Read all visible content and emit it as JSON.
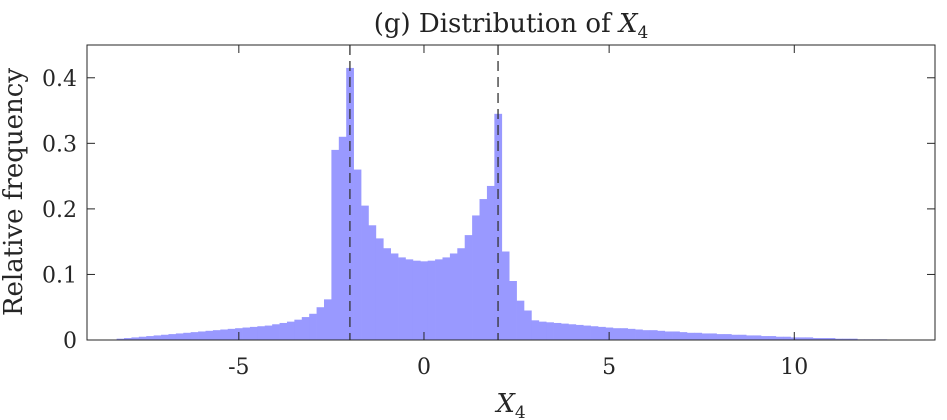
{
  "chart_data": {
    "type": "bar",
    "title_prefix": "(g) Distribution of ",
    "title_var": "X",
    "title_sub": "4",
    "xlabel_var": "X",
    "xlabel_sub": "4",
    "ylabel": "Relative frequency",
    "xlim": [
      -9.1,
      13.8
    ],
    "ylim": [
      0,
      0.45
    ],
    "xticks": [
      -5,
      0,
      5,
      10
    ],
    "xtick_labels": [
      "-5",
      "0",
      "5",
      "10"
    ],
    "yticks": [
      0,
      0.1,
      0.2,
      0.3,
      0.4
    ],
    "ytick_labels": [
      "0",
      "0.1",
      "0.2",
      "0.3",
      "0.4"
    ],
    "grid": false,
    "bar_color": "#9999ff",
    "dashed_lines_x": [
      -2,
      2
    ],
    "bin_width": 0.2,
    "x": [
      -8.2,
      -8.0,
      -7.8,
      -7.6,
      -7.4,
      -7.2,
      -7.0,
      -6.8,
      -6.6,
      -6.4,
      -6.2,
      -6.0,
      -5.8,
      -5.6,
      -5.4,
      -5.2,
      -5.0,
      -4.8,
      -4.6,
      -4.4,
      -4.2,
      -4.0,
      -3.8,
      -3.6,
      -3.4,
      -3.2,
      -3.0,
      -2.8,
      -2.6,
      -2.4,
      -2.2,
      -2.0,
      -1.8,
      -1.6,
      -1.4,
      -1.2,
      -1.0,
      -0.8,
      -0.6,
      -0.4,
      -0.2,
      0.0,
      0.2,
      0.4,
      0.6,
      0.8,
      1.0,
      1.2,
      1.4,
      1.6,
      1.8,
      2.0,
      2.2,
      2.4,
      2.6,
      2.8,
      3.0,
      3.2,
      3.4,
      3.6,
      3.8,
      4.0,
      4.2,
      4.4,
      4.6,
      4.8,
      5.0,
      5.2,
      5.4,
      5.6,
      5.8,
      6.0,
      6.2,
      6.4,
      6.6,
      6.8,
      7.0,
      7.2,
      7.4,
      7.6,
      7.8,
      8.0,
      8.2,
      8.4,
      8.6,
      8.8,
      9.0,
      9.2,
      9.4,
      9.6,
      9.8,
      10.0,
      10.2,
      10.4,
      10.6,
      10.8,
      11.0,
      11.2,
      11.4,
      11.6,
      11.8,
      12.0,
      12.2,
      12.4
    ],
    "values": [
      0.002,
      0.003,
      0.004,
      0.005,
      0.006,
      0.007,
      0.008,
      0.009,
      0.01,
      0.011,
      0.012,
      0.013,
      0.014,
      0.015,
      0.016,
      0.017,
      0.018,
      0.019,
      0.02,
      0.021,
      0.022,
      0.024,
      0.026,
      0.028,
      0.031,
      0.035,
      0.04,
      0.05,
      0.062,
      0.29,
      0.31,
      0.415,
      0.26,
      0.205,
      0.175,
      0.155,
      0.14,
      0.132,
      0.126,
      0.123,
      0.121,
      0.12,
      0.121,
      0.123,
      0.126,
      0.132,
      0.14,
      0.16,
      0.19,
      0.215,
      0.235,
      0.345,
      0.135,
      0.09,
      0.06,
      0.045,
      0.03,
      0.028,
      0.027,
      0.026,
      0.025,
      0.024,
      0.023,
      0.022,
      0.021,
      0.02,
      0.019,
      0.018,
      0.018,
      0.017,
      0.016,
      0.015,
      0.015,
      0.014,
      0.013,
      0.013,
      0.012,
      0.011,
      0.011,
      0.01,
      0.01,
      0.009,
      0.009,
      0.008,
      0.008,
      0.007,
      0.007,
      0.006,
      0.006,
      0.005,
      0.005,
      0.004,
      0.004,
      0.004,
      0.003,
      0.003,
      0.003,
      0.002,
      0.002,
      0.002,
      0.001,
      0.001,
      0.001,
      0.001
    ]
  }
}
